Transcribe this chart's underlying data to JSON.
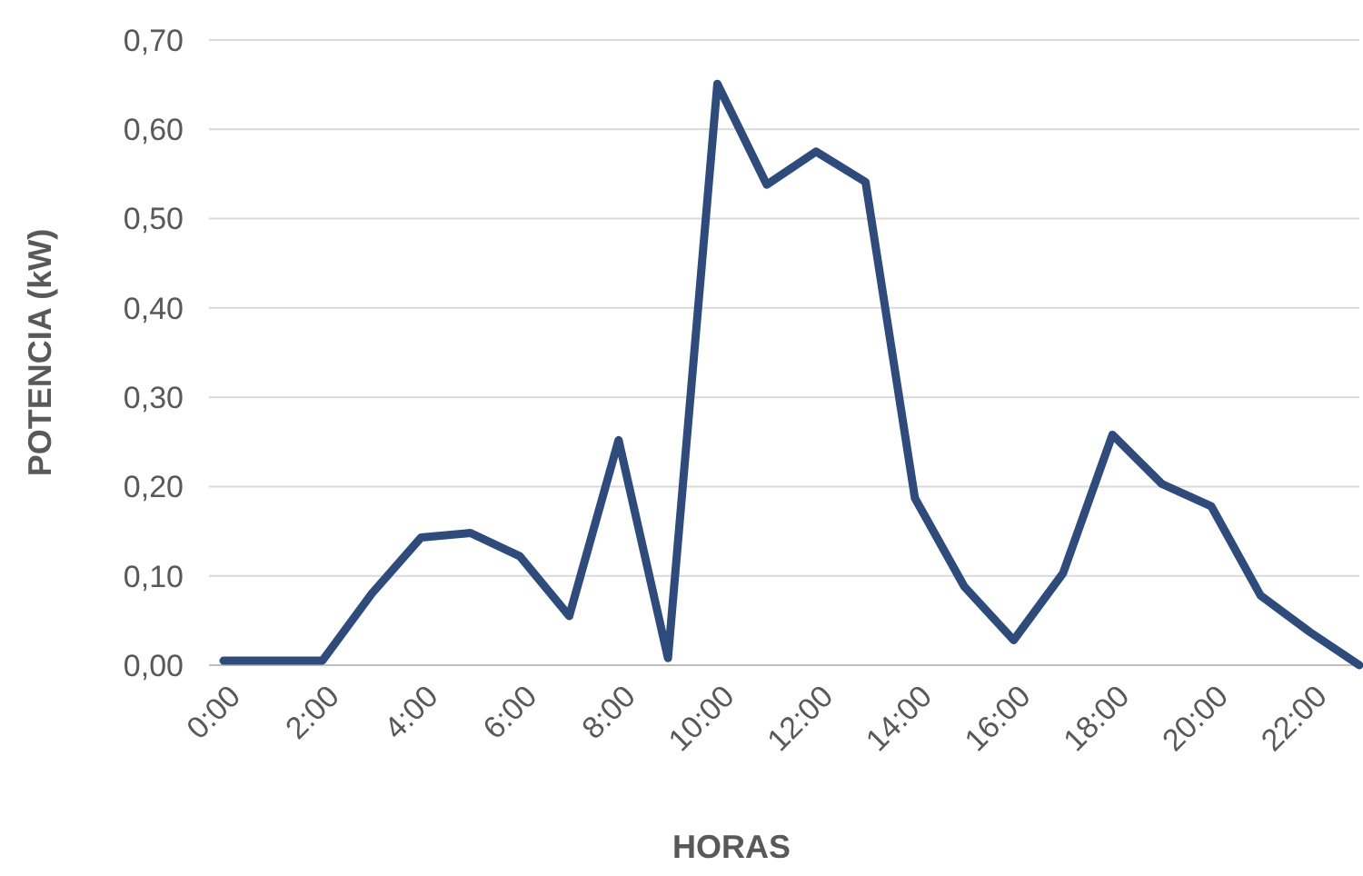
{
  "chart_data": {
    "type": "line",
    "xlabel": "HORAS",
    "ylabel": "POTENCIA (kW)",
    "categories": [
      "0:00",
      null,
      "2:00",
      null,
      "4:00",
      null,
      "6:00",
      null,
      "8:00",
      null,
      "10:00",
      null,
      "12:00",
      null,
      "14:00",
      null,
      "16:00",
      null,
      "18:00",
      null,
      "20:00",
      null,
      "22:00",
      null
    ],
    "series": [
      {
        "color": "#2f4b7c",
        "values": [
          0.005,
          0.005,
          0.005,
          0.08,
          0.143,
          0.148,
          0.122,
          0.055,
          0.252,
          0.008,
          0.651,
          0.538,
          0.575,
          0.541,
          0.187,
          0.088,
          0.028,
          0.103,
          0.258,
          0.203,
          0.178,
          0.078,
          0.037,
          0.0
        ]
      }
    ],
    "ylim": [
      0,
      0.7
    ],
    "yticks": [
      {
        "value": 0,
        "label": "0,00"
      },
      {
        "value": 0.1,
        "label": "0,10"
      },
      {
        "value": 0.2,
        "label": "0,20"
      },
      {
        "value": 0.3,
        "label": "0,30"
      },
      {
        "value": 0.4,
        "label": "0,40"
      },
      {
        "value": 0.5,
        "label": "0,50"
      },
      {
        "value": 0.6,
        "label": "0,60"
      },
      {
        "value": 0.7,
        "label": "0,70"
      }
    ],
    "grid": "y",
    "marker": "none",
    "line_style": "solid"
  }
}
